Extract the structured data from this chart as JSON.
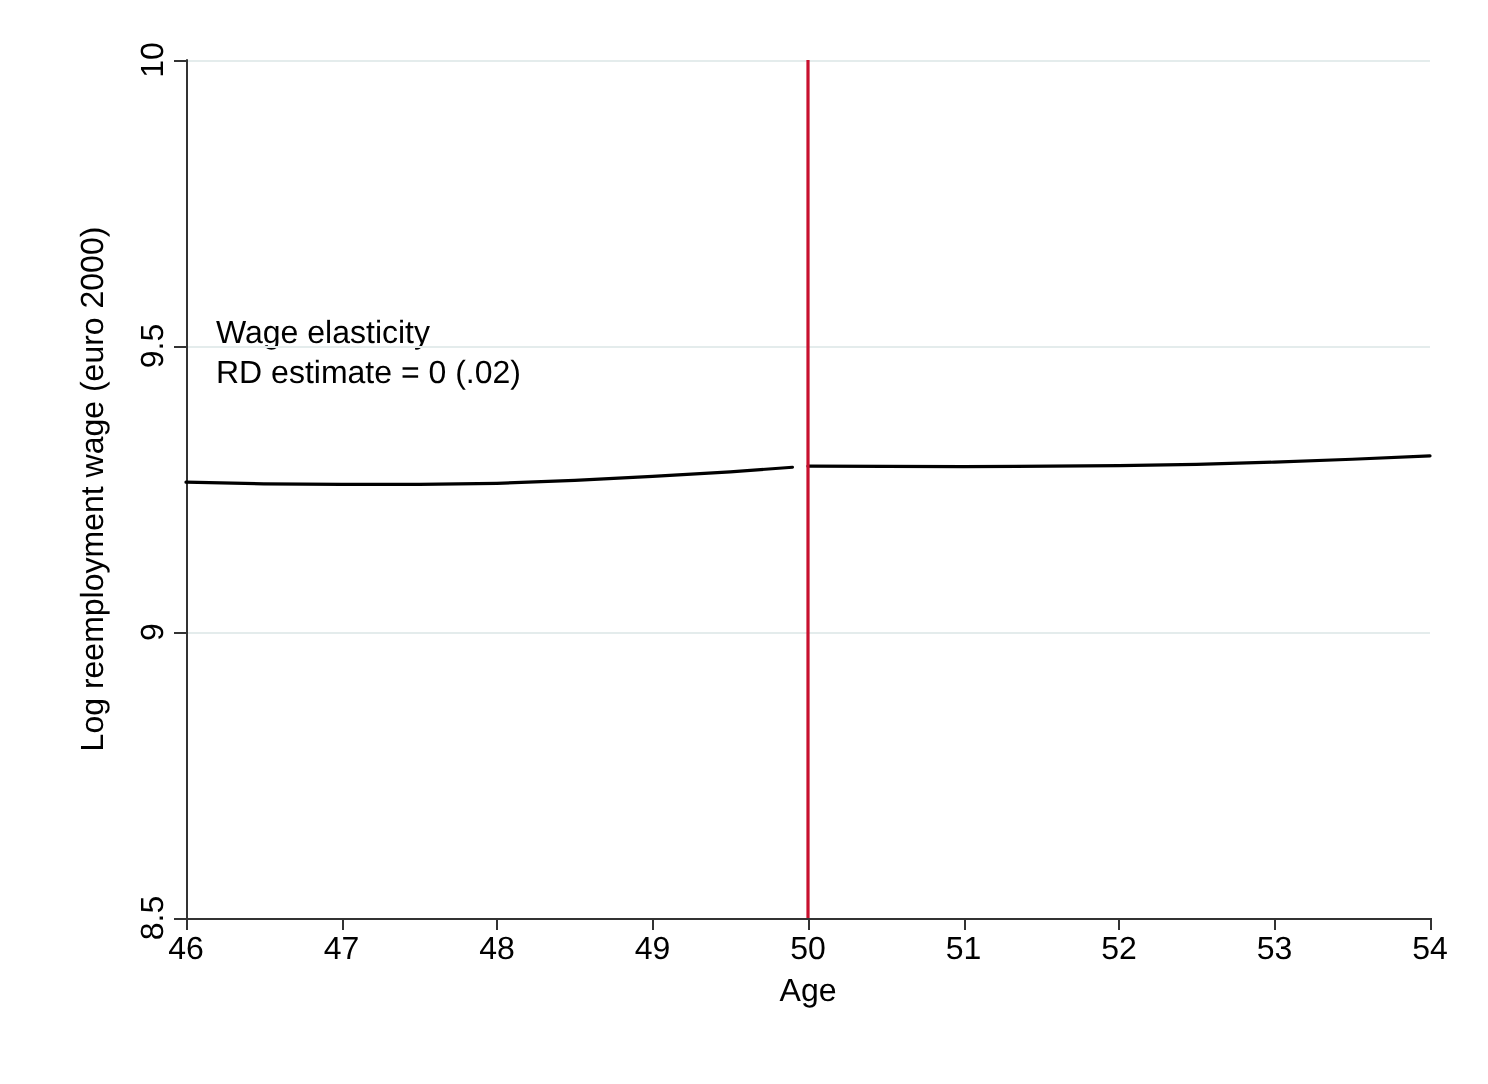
{
  "chart_data": {
    "type": "line",
    "xlabel": "Age",
    "ylabel": "Log reemployment wage (euro 2000)",
    "xlim": [
      46,
      54
    ],
    "xticks": [
      46,
      47,
      48,
      49,
      50,
      51,
      52,
      53,
      54
    ],
    "ylim": [
      8.5,
      10
    ],
    "yticks": [
      8.5,
      9,
      9.5,
      10
    ],
    "series": [
      {
        "color": "#000000",
        "x": [
          46,
          46.5,
          47,
          47.5,
          48,
          48.5,
          49,
          49.5,
          49.9
        ],
        "values": [
          9.262,
          9.259,
          9.258,
          9.258,
          9.26,
          9.265,
          9.272,
          9.28,
          9.288
        ]
      },
      {
        "color": "#000000",
        "x": [
          50,
          51,
          52,
          52.5,
          53,
          53.5,
          54
        ],
        "values": [
          9.29,
          9.289,
          9.291,
          9.293,
          9.297,
          9.302,
          9.308
        ]
      }
    ],
    "ref_lines": [
      {
        "axis": "x",
        "value": 50,
        "color": "#c8102e"
      }
    ],
    "annotations": [
      "Wage elasticity",
      "RD estimate = 0 (.02)"
    ],
    "grid": "y",
    "marker": "none",
    "line_style": "solid"
  }
}
